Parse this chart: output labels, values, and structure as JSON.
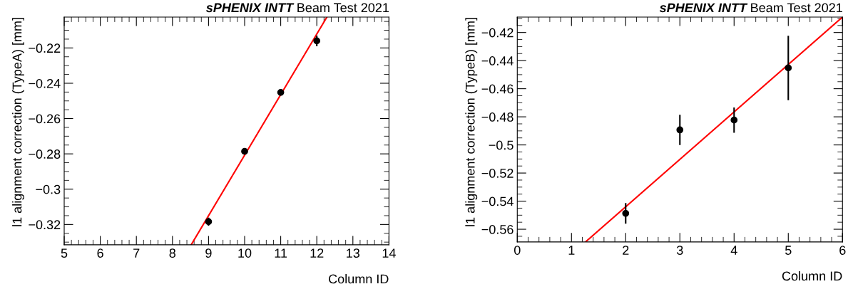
{
  "chart_data": [
    {
      "type": "scatter",
      "title": "sPHENIX INTT Beam Test 2021",
      "xlabel": "Column ID",
      "ylabel": "l1 alignment correction (TypeA) [mm]",
      "grid": false,
      "legend": false,
      "xlim": [
        5,
        14
      ],
      "xticks": [
        5,
        6,
        7,
        8,
        9,
        10,
        11,
        12,
        13,
        14
      ],
      "ylim": [
        -0.3315,
        -0.2025
      ],
      "yticks": [
        -0.32,
        -0.3,
        -0.28,
        -0.26,
        -0.24,
        -0.22
      ],
      "series": [
        {
          "color": "#000000",
          "marker": "circle",
          "x": [
            9,
            10,
            11,
            12
          ],
          "values": [
            -0.3184,
            -0.2786,
            -0.2452,
            -0.216
          ],
          "errors": [
            0.0023,
            0.0015,
            0.0015,
            0.003
          ]
        },
        {
          "type": "line",
          "marker": "none",
          "color": "#ff0000",
          "x": [
            8.52,
            12.28
          ],
          "values": [
            -0.3315,
            -0.2025
          ]
        }
      ]
    },
    {
      "type": "scatter",
      "title": "sPHENIX INTT Beam Test 2021",
      "xlabel": "Column ID",
      "ylabel": "l1 alignment correction (TypeB) [mm]",
      "grid": false,
      "legend": false,
      "xlim": [
        0,
        6
      ],
      "xticks": [
        0,
        1,
        2,
        3,
        4,
        5,
        6
      ],
      "ylim": [
        -0.569,
        -0.409
      ],
      "yticks": [
        -0.56,
        -0.54,
        -0.52,
        -0.5,
        -0.48,
        -0.46,
        -0.44,
        -0.42
      ],
      "series": [
        {
          "color": "#000000",
          "marker": "circle",
          "x": [
            2,
            3,
            4,
            5
          ],
          "values": [
            -0.5487,
            -0.4893,
            -0.4823,
            -0.4452
          ],
          "errors": [
            0.0074,
            0.0108,
            0.009,
            0.0229
          ]
        },
        {
          "type": "line",
          "marker": "none",
          "color": "#ff0000",
          "x": [
            1.26,
            6
          ],
          "values": [
            -0.569,
            -0.409
          ]
        }
      ]
    }
  ]
}
